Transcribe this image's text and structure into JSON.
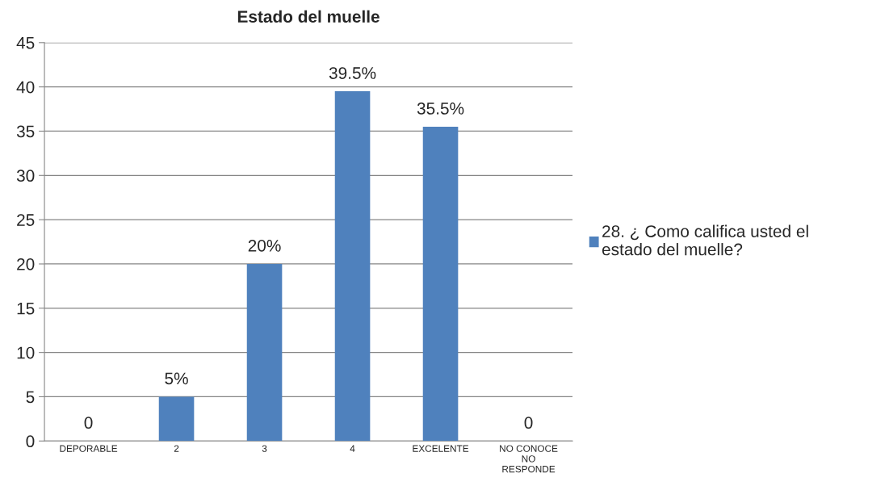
{
  "chart_data": {
    "type": "bar",
    "title": "Estado del muelle",
    "categories": [
      "DEPORABLE",
      "2",
      "3",
      "4",
      "EXCELENTE",
      "NO CONOCE NO RESPONDE"
    ],
    "series": [
      {
        "name": "28. ¿ Como califica usted el estado del muelle?",
        "color": "#4f81bd",
        "values": [
          0,
          5,
          20,
          39.5,
          35.5,
          0
        ],
        "value_labels": [
          "0",
          "5%",
          "20%",
          "39.5%",
          "35.5%",
          "0"
        ]
      }
    ],
    "ylim": [
      0,
      45
    ],
    "yticks": [
      0,
      5,
      10,
      15,
      20,
      25,
      30,
      35,
      40,
      45
    ],
    "grid": "y",
    "legend": "right"
  }
}
